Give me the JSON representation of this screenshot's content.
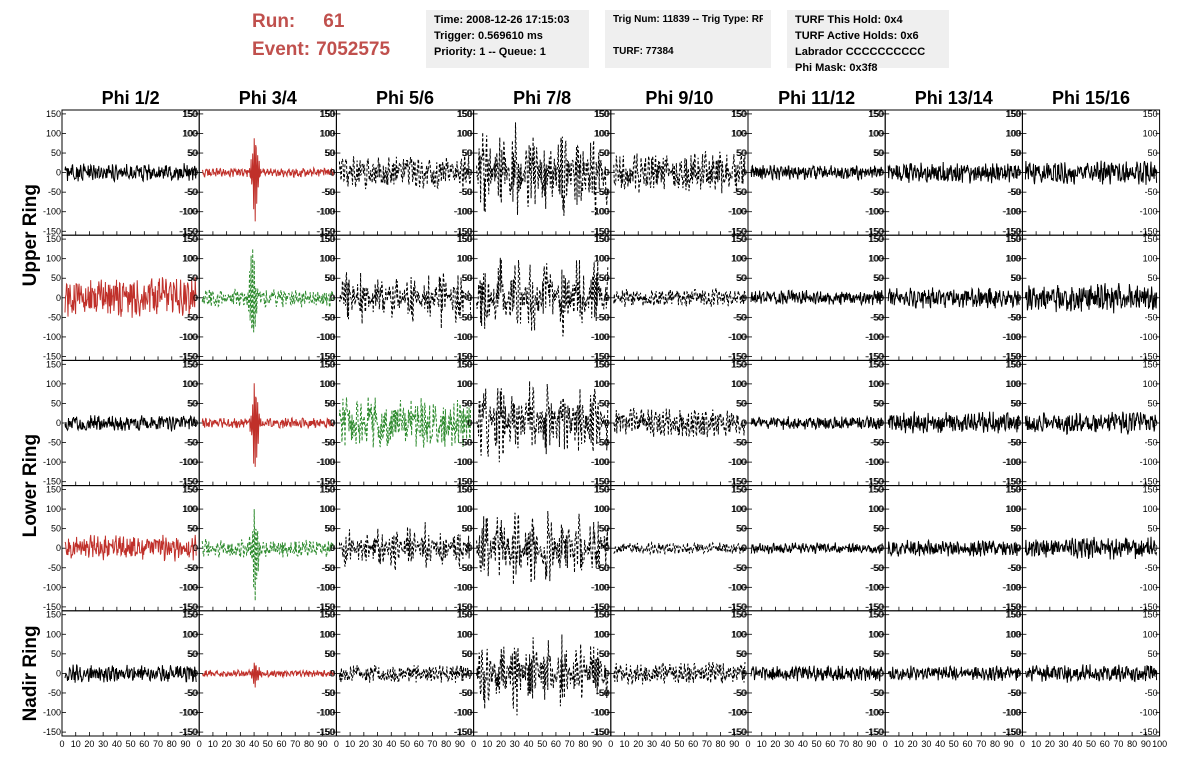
{
  "header": {
    "run_label": "Run:",
    "run_value": "61",
    "event_label": "Event:",
    "event_value": "7052575"
  },
  "info_time": {
    "time": "Time: 2008-12-26 17:15:03",
    "trigger": "Trigger: 0.569610 ms",
    "priority": "Priority: 1 -- Queue: 1"
  },
  "info_trig": {
    "trig": "Trig Num: 11839 -- Trig Type: RF",
    "turf": "TURF: 77384"
  },
  "info_turf": {
    "hold": "TURF This Hold: 0x4",
    "active": "TURF Active Holds: 0x6",
    "labrador": "Labrador CCCCCCCCCC",
    "mask": "Phi Mask: 0x3f8"
  },
  "colors": {
    "black": "#000000",
    "red": "#c0302a",
    "green": "#2e8b2e",
    "header": "#c0504d",
    "panel": "#efefef"
  },
  "chart_data": {
    "type": "line",
    "columns": [
      "Phi 1/2",
      "Phi 3/4",
      "Phi 5/6",
      "Phi 7/8",
      "Phi 9/10",
      "Phi 11/12",
      "Phi 13/14",
      "Phi 15/16"
    ],
    "rows": [
      "Upper Ring",
      "Lower Ring",
      "Nadir Ring"
    ],
    "xlim": [
      0,
      100
    ],
    "ylim": [
      -160,
      160
    ],
    "x_ticks": [
      "0",
      "10",
      "20",
      "30",
      "40",
      "50",
      "60",
      "70",
      "80",
      "90",
      "100"
    ],
    "y_ticks": [
      "150",
      "100",
      "50",
      "0",
      "-50",
      "-100",
      "-150"
    ],
    "grid": false,
    "series_description": "noise-like waveforms; amp = approximate peak amplitude in mV, pulse_x = position of impulsive spike in ns, envelope = bursting modulation",
    "traces": [
      {
        "row": 0,
        "col": 0,
        "color": "black",
        "style": "solid",
        "amp": 25
      },
      {
        "row": 0,
        "col": 1,
        "color": "red",
        "style": "solid",
        "amp": 12,
        "pulse_x": 40,
        "pulse_amp": 120
      },
      {
        "row": 0,
        "col": 2,
        "color": "black",
        "style": "dashed",
        "amp": 45
      },
      {
        "row": 0,
        "col": 3,
        "color": "black",
        "style": "dashed",
        "amp": 140,
        "envelope": true
      },
      {
        "row": 0,
        "col": 4,
        "color": "black",
        "style": "dashed",
        "amp": 55
      },
      {
        "row": 0,
        "col": 5,
        "color": "black",
        "style": "solid",
        "amp": 20
      },
      {
        "row": 0,
        "col": 6,
        "color": "black",
        "style": "solid",
        "amp": 28
      },
      {
        "row": 0,
        "col": 7,
        "color": "black",
        "style": "solid",
        "amp": 32
      },
      {
        "row": 1,
        "col": 0,
        "color": "red",
        "style": "solid",
        "amp": 55
      },
      {
        "row": 1,
        "col": 1,
        "color": "green",
        "style": "dashed",
        "amp": 25,
        "pulse_x": 38,
        "pulse_amp": 140
      },
      {
        "row": 1,
        "col": 2,
        "color": "black",
        "style": "dashed",
        "amp": 80,
        "envelope": true
      },
      {
        "row": 1,
        "col": 3,
        "color": "black",
        "style": "dashed",
        "amp": 120,
        "envelope": true
      },
      {
        "row": 1,
        "col": 4,
        "color": "black",
        "style": "dashed",
        "amp": 25
      },
      {
        "row": 1,
        "col": 5,
        "color": "black",
        "style": "solid",
        "amp": 20
      },
      {
        "row": 1,
        "col": 6,
        "color": "black",
        "style": "solid",
        "amp": 28
      },
      {
        "row": 1,
        "col": 7,
        "color": "black",
        "style": "solid",
        "amp": 40
      },
      {
        "row": 2,
        "col": 0,
        "color": "black",
        "style": "solid",
        "amp": 22
      },
      {
        "row": 2,
        "col": 1,
        "color": "red",
        "style": "solid",
        "amp": 14,
        "pulse_x": 40,
        "pulse_amp": 120
      },
      {
        "row": 2,
        "col": 2,
        "color": "green",
        "style": "dashed",
        "amp": 70
      },
      {
        "row": 2,
        "col": 3,
        "color": "black",
        "style": "dashed",
        "amp": 120,
        "envelope": true
      },
      {
        "row": 2,
        "col": 4,
        "color": "black",
        "style": "dashed",
        "amp": 40
      },
      {
        "row": 2,
        "col": 5,
        "color": "black",
        "style": "solid",
        "amp": 18
      },
      {
        "row": 2,
        "col": 6,
        "color": "black",
        "style": "solid",
        "amp": 30
      },
      {
        "row": 2,
        "col": 7,
        "color": "black",
        "style": "solid",
        "amp": 30
      },
      {
        "row": 3,
        "col": 0,
        "color": "red",
        "style": "solid",
        "amp": 35
      },
      {
        "row": 3,
        "col": 1,
        "color": "green",
        "style": "dashed",
        "amp": 25,
        "pulse_x": 40,
        "pulse_amp": 120
      },
      {
        "row": 3,
        "col": 2,
        "color": "black",
        "style": "dashed",
        "amp": 70,
        "envelope": true
      },
      {
        "row": 3,
        "col": 3,
        "color": "black",
        "style": "dashed",
        "amp": 110,
        "envelope": true
      },
      {
        "row": 3,
        "col": 4,
        "color": "black",
        "style": "dashed",
        "amp": 15
      },
      {
        "row": 3,
        "col": 5,
        "color": "black",
        "style": "solid",
        "amp": 15
      },
      {
        "row": 3,
        "col": 6,
        "color": "black",
        "style": "solid",
        "amp": 22
      },
      {
        "row": 3,
        "col": 7,
        "color": "black",
        "style": "solid",
        "amp": 30
      },
      {
        "row": 4,
        "col": 0,
        "color": "black",
        "style": "solid",
        "amp": 25
      },
      {
        "row": 4,
        "col": 1,
        "color": "red",
        "style": "solid",
        "amp": 10,
        "pulse_x": 40,
        "pulse_amp": 35
      },
      {
        "row": 4,
        "col": 2,
        "color": "black",
        "style": "dashed",
        "amp": 25
      },
      {
        "row": 4,
        "col": 3,
        "color": "black",
        "style": "dashed",
        "amp": 110,
        "envelope": true
      },
      {
        "row": 4,
        "col": 4,
        "color": "black",
        "style": "dashed",
        "amp": 30
      },
      {
        "row": 4,
        "col": 5,
        "color": "black",
        "style": "solid",
        "amp": 22
      },
      {
        "row": 4,
        "col": 6,
        "color": "black",
        "style": "solid",
        "amp": 20
      },
      {
        "row": 4,
        "col": 7,
        "color": "black",
        "style": "solid",
        "amp": 25
      }
    ]
  }
}
